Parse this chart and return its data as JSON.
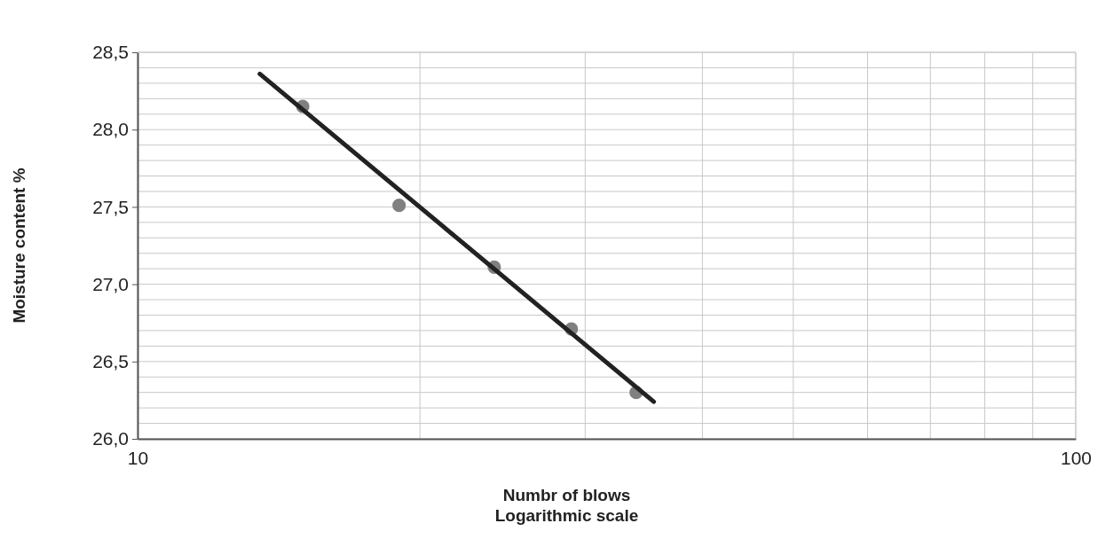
{
  "chart_data": {
    "type": "scatter",
    "xlabel": "Numbr of blows\nLogarithmic scale",
    "ylabel": "Moisture content %",
    "log": "x",
    "grid": true,
    "xlim": [
      10,
      100
    ],
    "xticks": [
      10,
      {
        "value": 20,
        "label": null
      },
      {
        "value": 30,
        "label": null
      },
      {
        "value": 40,
        "label": null
      },
      {
        "value": 50,
        "label": null
      },
      {
        "value": 60,
        "label": null
      },
      {
        "value": 70,
        "label": null
      },
      {
        "value": 80,
        "label": null
      },
      {
        "value": 90,
        "label": null
      },
      100
    ],
    "ylim": [
      26,
      28.5
    ],
    "yticks": [
      {
        "value": 26,
        "label": "26,0"
      },
      {
        "value": 26.1,
        "label": null
      },
      {
        "value": 26.2,
        "label": null
      },
      {
        "value": 26.3,
        "label": null
      },
      {
        "value": 26.4,
        "label": null
      },
      {
        "value": 26.5,
        "label": "26,5"
      },
      {
        "value": 26.6,
        "label": null
      },
      {
        "value": 26.7,
        "label": null
      },
      {
        "value": 26.8,
        "label": null
      },
      {
        "value": 26.9,
        "label": null
      },
      {
        "value": 27,
        "label": "27,0"
      },
      {
        "value": 27.1,
        "label": null
      },
      {
        "value": 27.2,
        "label": null
      },
      {
        "value": 27.3,
        "label": null
      },
      {
        "value": 27.4,
        "label": null
      },
      {
        "value": 27.5,
        "label": "27,5"
      },
      {
        "value": 27.6,
        "label": null
      },
      {
        "value": 27.7,
        "label": null
      },
      {
        "value": 27.8,
        "label": null
      },
      {
        "value": 27.9,
        "label": null
      },
      {
        "value": 28,
        "label": "28,0"
      },
      {
        "value": 28.1,
        "label": null
      },
      {
        "value": 28.2,
        "label": null
      },
      {
        "value": 28.3,
        "label": null
      },
      {
        "value": 28.4,
        "label": null
      },
      {
        "value": 28.5,
        "label": "28,5"
      }
    ],
    "series": [
      {
        "marker": "circle",
        "color": "#808080",
        "x": [
          15,
          19,
          24,
          29,
          34
        ],
        "values": [
          28.15,
          27.51,
          27.11,
          26.71,
          26.3
        ]
      },
      {
        "type": "line",
        "marker": "none",
        "color": "#222222",
        "x": [
          13.5,
          35.5
        ],
        "values": [
          28.36,
          26.24
        ]
      }
    ]
  }
}
